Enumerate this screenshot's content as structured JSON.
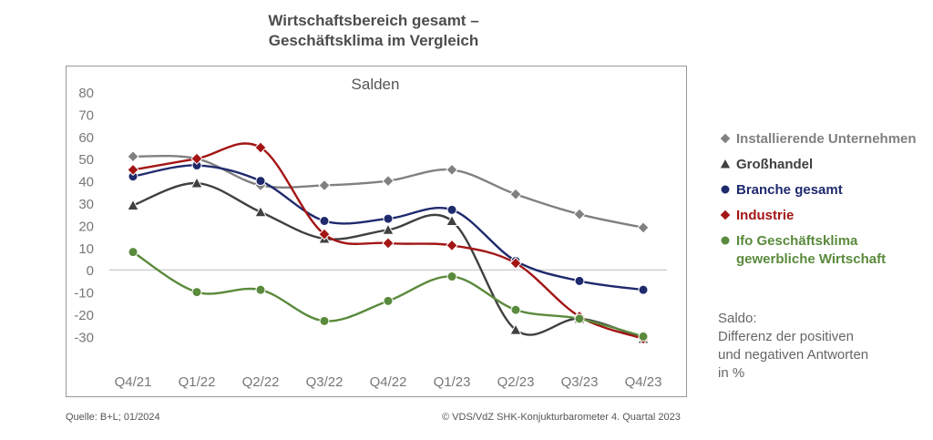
{
  "title_line1": "Wirtschaftsbereich gesamt –",
  "title_line2": "Geschäftsklima im Vergleich",
  "plot_label": "Salden",
  "saldo_note": "Saldo:\nDifferenz der positiven\nund negativen Antworten\nin %",
  "source": "Quelle: B+L; 01/2024",
  "copyright": "© VDS/VdZ SHK-Konjukturbarometer 4. Quartal 2023",
  "chart_data": {
    "type": "line",
    "categories": [
      "Q4/21",
      "Q1/22",
      "Q2/22",
      "Q3/22",
      "Q4/22",
      "Q1/23",
      "Q2/23",
      "Q3/23",
      "Q4/23"
    ],
    "yticks": [
      80,
      70,
      60,
      50,
      40,
      30,
      20,
      10,
      0,
      -10,
      -20,
      -30
    ],
    "ylim": [
      -30,
      80
    ],
    "smooth": true,
    "series": [
      {
        "name": "Installierende Unternehmen",
        "color": "#808080",
        "marker": "diamond",
        "values": [
          51,
          50,
          38,
          38,
          40,
          45,
          34,
          25,
          19
        ]
      },
      {
        "name": "Großhandel",
        "color": "#404040",
        "marker": "triangle",
        "values": [
          29,
          39,
          26,
          14,
          18,
          22,
          -27,
          -22,
          -31
        ]
      },
      {
        "name": "Branche gesamt",
        "color": "#1f2a6d",
        "marker": "circle",
        "values": [
          42,
          47,
          40,
          22,
          23,
          27,
          4,
          -5,
          -9
        ]
      },
      {
        "name": "Industrie",
        "color": "#a31515",
        "marker": "diamond",
        "values": [
          45,
          50,
          55,
          16,
          12,
          11,
          3,
          -21,
          -31
        ]
      },
      {
        "name": "Ifo Geschäftsklima gewerbliche Wirtschaft",
        "color": "#5a8a3c",
        "marker": "circle",
        "values": [
          8,
          -10,
          -9,
          -23,
          -14,
          -3,
          -18,
          -22,
          -30
        ]
      }
    ]
  }
}
